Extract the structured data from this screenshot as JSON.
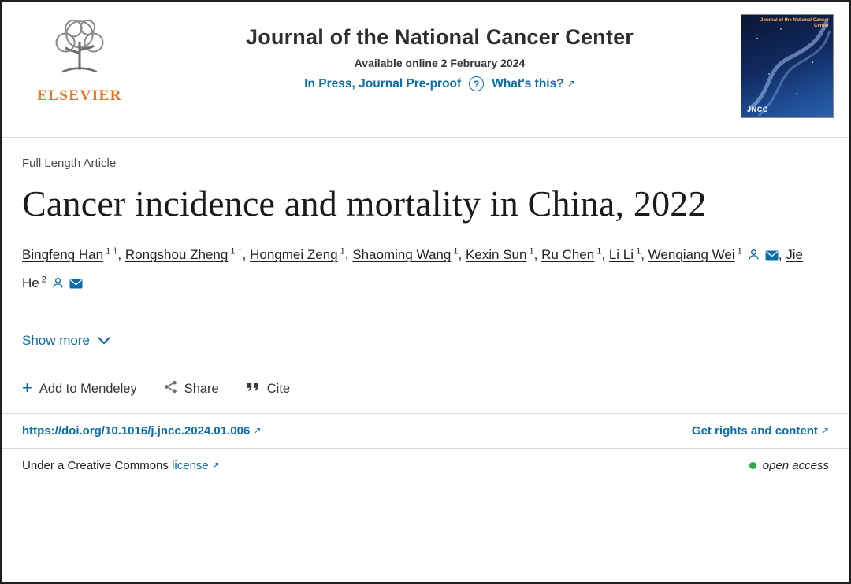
{
  "colors": {
    "link": "#0b6daa",
    "elsevier_orange": "#e8711a",
    "open_access_green": "#2fa84f",
    "text_dark": "#212121"
  },
  "icons": {
    "external_arrow": "↗",
    "plus": "+",
    "question": "?"
  },
  "header": {
    "elsevier_wordmark": "ELSEVIER",
    "journal_title": "Journal of the National Cancer Center",
    "available_online": "Available online 2 February 2024",
    "in_press_label": "In Press, Journal Pre-proof",
    "whats_this_label": "What's this?",
    "cover": {
      "masthead": "Journal of the National Cancer Center",
      "label": "JNCC"
    }
  },
  "article": {
    "type_label": "Full Length Article",
    "title": "Cancer incidence and mortality in China, 2022",
    "author_separator": ", ",
    "authors": [
      {
        "name": "Bingfeng Han",
        "sup": "1 †",
        "icons": []
      },
      {
        "name": "Rongshou Zheng",
        "sup": "1 †",
        "icons": []
      },
      {
        "name": "Hongmei Zeng",
        "sup": "1",
        "icons": []
      },
      {
        "name": "Shaoming Wang",
        "sup": "1",
        "icons": []
      },
      {
        "name": "Kexin Sun",
        "sup": "1",
        "icons": []
      },
      {
        "name": "Ru Chen",
        "sup": "1",
        "icons": []
      },
      {
        "name": "Li Li",
        "sup": "1",
        "icons": []
      },
      {
        "name": "Wenqiang Wei",
        "sup": "1",
        "icons": [
          "person",
          "envelope"
        ]
      },
      {
        "name": "Jie He",
        "sup": "2",
        "icons": [
          "person",
          "envelope"
        ]
      }
    ],
    "show_more_label": "Show more"
  },
  "actions": {
    "mendeley_label": "Add to Mendeley",
    "share_label": "Share",
    "cite_label": "Cite"
  },
  "links_row": {
    "doi": "https://doi.org/10.1016/j.jncc.2024.01.006",
    "rights_label": "Get rights and content"
  },
  "license_row": {
    "prefix": "Under a Creative Commons",
    "license_label": "license",
    "open_access_label": "open access"
  }
}
